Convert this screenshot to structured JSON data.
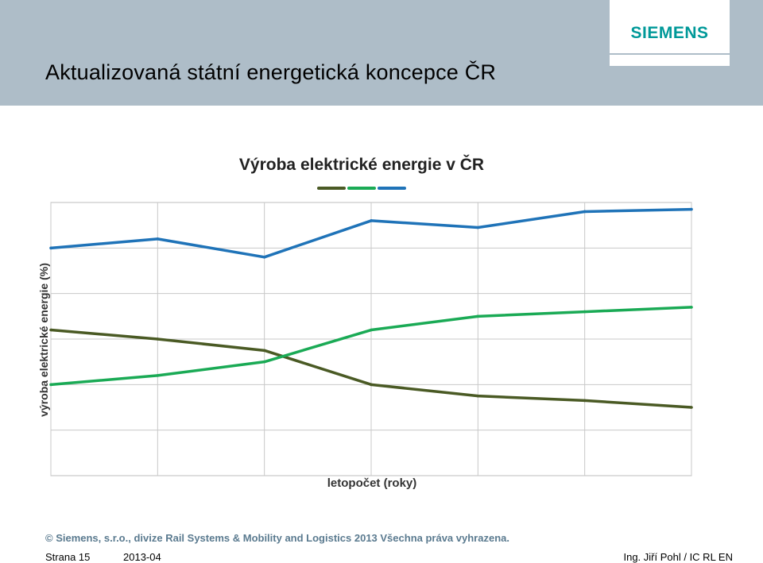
{
  "slide": {
    "title": "Aktualizovaná státní energetická koncepce ČR",
    "logo": "SIEMENS",
    "copyright": "© Siemens, s.r.o., divize Rail Systems & Mobility and Logistics  2013  Všechna práva vyhrazena.",
    "page": "Strana 15",
    "date": "2013-04",
    "author": "Ing. Jiří Pohl / IC RL EN"
  },
  "colors": {
    "header": "#aebdc8",
    "brand": "#009999",
    "series_dark": "#4a5a24",
    "series_green": "#1aaa55",
    "series_blue": "#1f73b8"
  },
  "chart_data": {
    "type": "line",
    "title": "Výroba elektrické energie v ČR",
    "xlabel": "letopočet (roky)",
    "ylabel": "výroba elektrické energie (%)",
    "x": [
      0,
      1,
      2,
      3,
      4,
      5,
      6
    ],
    "ylim": [
      0,
      6
    ],
    "grid": true,
    "legend": "top-center",
    "series": [
      {
        "color": "#4a5a24",
        "values": [
          3.2,
          3.0,
          2.75,
          2.0,
          1.75,
          1.65,
          1.5
        ]
      },
      {
        "color": "#1aaa55",
        "values": [
          2.0,
          2.2,
          2.5,
          3.2,
          3.5,
          3.6,
          3.7
        ]
      },
      {
        "color": "#1f73b8",
        "values": [
          5.0,
          5.2,
          4.8,
          5.6,
          5.45,
          5.8,
          5.85
        ]
      }
    ]
  }
}
